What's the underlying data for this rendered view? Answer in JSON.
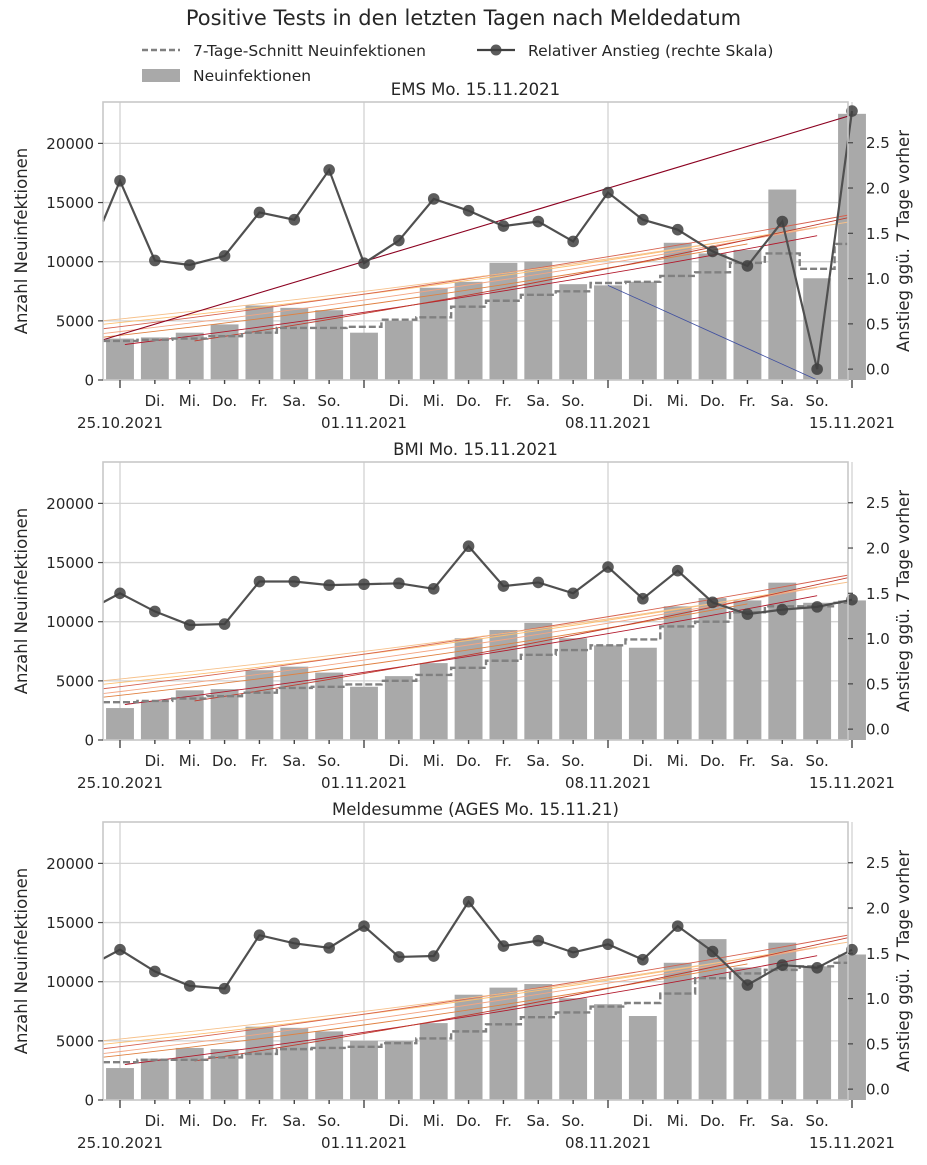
{
  "figure": {
    "title": "Positive Tests in den letzten Tagen nach Meldedatum",
    "legend": {
      "placement": "top",
      "items": [
        {
          "label": "7-Tage-Schnitt Neuinfektionen",
          "style": "dashed-line",
          "color": "#808080"
        },
        {
          "label": "Relativer Anstieg (rechte Skala)",
          "style": "line-marker",
          "color": "#404040"
        },
        {
          "label": "Neuinfektionen",
          "style": "bar",
          "color": "#a9a9a9"
        }
      ]
    },
    "colors": {
      "bars": "#a9a9a9",
      "avg": "#808080",
      "ratio": "#505050",
      "grid": "#d3d3d3",
      "axes": "#c8c8c8"
    }
  },
  "chart_data": [
    {
      "type": "bar",
      "title": "EMS Mo. 15.11.2021",
      "ylabel": "Anzahl Neuinfektionen",
      "y2label": "Anstieg ggü. 7 Tage vorher",
      "ylim": [
        0,
        23500
      ],
      "y2lim": [
        -0.12,
        2.95
      ],
      "yticks": [
        0,
        5000,
        10000,
        15000,
        20000
      ],
      "y2ticks": [
        "0.0",
        "0.5",
        "1.0",
        "1.5",
        "2.0",
        "2.5"
      ],
      "grid": true,
      "categories": [
        "25.10.2021",
        "26.10.2021",
        "27.10.2021",
        "28.10.2021",
        "29.10.2021",
        "30.10.2021",
        "31.10.2021",
        "01.11.2021",
        "02.11.2021",
        "03.11.2021",
        "04.11.2021",
        "05.11.2021",
        "06.11.2021",
        "07.11.2021",
        "08.11.2021",
        "09.11.2021",
        "10.11.2021",
        "11.11.2021",
        "12.11.2021",
        "13.11.2021",
        "14.11.2021",
        "15.11.2021"
      ],
      "tick_labels": [
        "25.10.2021",
        "Di.",
        "Mi.",
        "Do.",
        "Fr.",
        "Sa.",
        "So.",
        "01.11.2021",
        "Di.",
        "Mi.",
        "Do.",
        "Fr.",
        "Sa.",
        "So.",
        "08.11.2021",
        "Di.",
        "Mi.",
        "Do.",
        "Fr.",
        "Sa.",
        "So.",
        "15.11.2021"
      ],
      "series": [
        {
          "name": "Neuinfektionen",
          "kind": "bar",
          "values": [
            3500,
            3600,
            4000,
            4700,
            6300,
            6100,
            5900,
            4000,
            5000,
            7800,
            8300,
            9900,
            10000,
            8100,
            8000,
            8300,
            11600,
            10700,
            11000,
            16100,
            8600,
            22500
          ]
        },
        {
          "name": "7-Tage-Schnitt Neuinfektionen",
          "kind": "step-dashed",
          "values": [
            3300,
            3400,
            3500,
            3700,
            4000,
            4400,
            4400,
            4500,
            5100,
            5300,
            6200,
            6700,
            7200,
            7500,
            8200,
            8300,
            8800,
            9100,
            9900,
            10700,
            9400,
            11500
          ]
        },
        {
          "name": "Relativer Anstieg (rechte Skala)",
          "kind": "line-marker",
          "axis": "right",
          "values": [
            2.08,
            1.2,
            1.15,
            1.25,
            1.73,
            1.65,
            2.2,
            1.17,
            1.42,
            1.88,
            1.75,
            1.58,
            1.63,
            1.41,
            1.95,
            1.65,
            1.54,
            1.3,
            1.14,
            1.63,
            0.0,
            2.85
          ]
        }
      ]
    },
    {
      "type": "bar",
      "title": "BMI Mo. 15.11.2021",
      "ylabel": "Anzahl Neuinfektionen",
      "y2label": "Anstieg ggü. 7 Tage vorher",
      "ylim": [
        0,
        23500
      ],
      "y2lim": [
        -0.12,
        2.95
      ],
      "yticks": [
        0,
        5000,
        10000,
        15000,
        20000
      ],
      "y2ticks": [
        "0.0",
        "0.5",
        "1.0",
        "1.5",
        "2.0",
        "2.5"
      ],
      "grid": true,
      "categories": [
        "25.10.2021",
        "26.10.2021",
        "27.10.2021",
        "28.10.2021",
        "29.10.2021",
        "30.10.2021",
        "31.10.2021",
        "01.11.2021",
        "02.11.2021",
        "03.11.2021",
        "04.11.2021",
        "05.11.2021",
        "06.11.2021",
        "07.11.2021",
        "08.11.2021",
        "09.11.2021",
        "10.11.2021",
        "11.11.2021",
        "12.11.2021",
        "13.11.2021",
        "14.11.2021",
        "15.11.2021"
      ],
      "tick_labels": [
        "25.10.2021",
        "Di.",
        "Mi.",
        "Do.",
        "Fr.",
        "Sa.",
        "So.",
        "01.11.2021",
        "Di.",
        "Mi.",
        "Do.",
        "Fr.",
        "Sa.",
        "So.",
        "08.11.2021",
        "Di.",
        "Mi.",
        "Do.",
        "Fr.",
        "Sa.",
        "So.",
        "15.11.2021"
      ],
      "series": [
        {
          "name": "Neuinfektionen",
          "kind": "bar",
          "values": [
            2700,
            3300,
            4200,
            4300,
            5900,
            6200,
            5700,
            4500,
            5400,
            6500,
            8600,
            9300,
            9900,
            8600,
            8000,
            7800,
            11300,
            12000,
            11800,
            13300,
            11600,
            11800
          ]
        },
        {
          "name": "7-Tage-Schnitt Neuinfektionen",
          "kind": "step-dashed",
          "values": [
            3200,
            3300,
            3500,
            3700,
            4000,
            4400,
            4500,
            4700,
            5000,
            5500,
            6100,
            6700,
            7200,
            7600,
            8000,
            8500,
            9600,
            10000,
            10800,
            11300,
            11300,
            11600
          ]
        },
        {
          "name": "Relativer Anstieg (rechte Skala)",
          "kind": "line-marker",
          "axis": "right",
          "values": [
            1.5,
            1.3,
            1.15,
            1.16,
            1.63,
            1.63,
            1.59,
            1.6,
            1.61,
            1.55,
            2.02,
            1.58,
            1.62,
            1.5,
            1.79,
            1.44,
            1.75,
            1.4,
            1.27,
            1.32,
            1.35,
            1.43
          ]
        }
      ]
    },
    {
      "type": "bar",
      "title": "Meldesumme (AGES Mo. 15.11.21)",
      "ylabel": "Anzahl Neuinfektionen",
      "y2label": "Anstieg ggü. 7 Tage vorher",
      "ylim": [
        0,
        23500
      ],
      "y2lim": [
        -0.12,
        2.95
      ],
      "yticks": [
        0,
        5000,
        10000,
        15000,
        20000
      ],
      "y2ticks": [
        "0.0",
        "0.5",
        "1.0",
        "1.5",
        "2.0",
        "2.5"
      ],
      "grid": true,
      "categories": [
        "25.10.2021",
        "26.10.2021",
        "27.10.2021",
        "28.10.2021",
        "29.10.2021",
        "30.10.2021",
        "31.10.2021",
        "01.11.2021",
        "02.11.2021",
        "03.11.2021",
        "04.11.2021",
        "05.11.2021",
        "06.11.2021",
        "07.11.2021",
        "08.11.2021",
        "09.11.2021",
        "10.11.2021",
        "11.11.2021",
        "12.11.2021",
        "13.11.2021",
        "14.11.2021",
        "15.11.2021"
      ],
      "tick_labels": [
        "25.10.2021",
        "Di.",
        "Mi.",
        "Do.",
        "Fr.",
        "Sa.",
        "So.",
        "01.11.2021",
        "Di.",
        "Mi.",
        "Do.",
        "Fr.",
        "Sa.",
        "So.",
        "08.11.2021",
        "Di.",
        "Mi.",
        "Do.",
        "Fr.",
        "Sa.",
        "So.",
        "15.11.2021"
      ],
      "series": [
        {
          "name": "Neuinfektionen",
          "kind": "bar",
          "values": [
            2700,
            3500,
            4400,
            4300,
            6200,
            6100,
            5800,
            5000,
            5000,
            6500,
            8900,
            9500,
            9800,
            8600,
            8100,
            7100,
            11600,
            13600,
            11200,
            13300,
            11300,
            12300
          ]
        },
        {
          "name": "7-Tage-Schnitt Neuinfektionen",
          "kind": "step-dashed",
          "values": [
            3200,
            3400,
            3400,
            3600,
            3900,
            4300,
            4400,
            4500,
            4800,
            5200,
            5800,
            6400,
            7000,
            7400,
            7900,
            8200,
            9000,
            10300,
            10700,
            11000,
            11300,
            11600
          ]
        },
        {
          "name": "Relativer Anstieg (rechte Skala)",
          "kind": "line-marker",
          "axis": "right",
          "values": [
            1.54,
            1.3,
            1.14,
            1.11,
            1.7,
            1.61,
            1.56,
            1.8,
            1.46,
            1.47,
            2.07,
            1.58,
            1.64,
            1.51,
            1.6,
            1.43,
            1.8,
            1.52,
            1.15,
            1.37,
            1.34,
            1.54
          ]
        }
      ]
    }
  ]
}
